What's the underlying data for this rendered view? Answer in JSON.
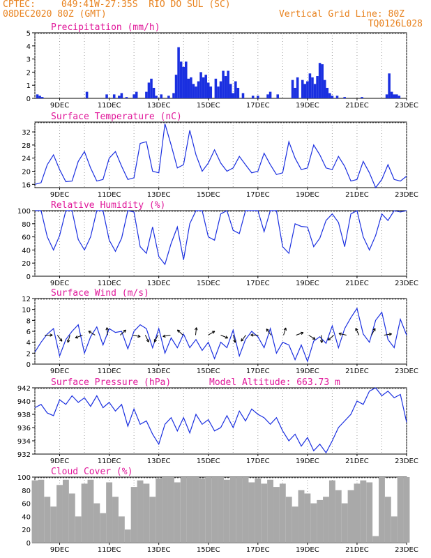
{
  "header": {
    "source": "CPTEC:",
    "location": "049:41W-27:35S  RIO DO SUL (SC)",
    "run": "08DEC2020 80Z (GMT)",
    "grid_note": "Vertical Grid Line: 80Z",
    "model_code": "TQ0126L028"
  },
  "chart_data": [
    {
      "type": "bar",
      "title": "Precipitation (mm/h)",
      "xlabel": "",
      "ylabel": "",
      "x_ticks": [
        "9DEC",
        "11DEC",
        "13DEC",
        "15DEC",
        "17DEC",
        "19DEC",
        "21DEC",
        "23DEC"
      ],
      "x_range": [
        8.0,
        23.0
      ],
      "ylim": [
        0,
        5
      ],
      "y_ticks": [
        0,
        1,
        2,
        3,
        4,
        5
      ],
      "series": [
        {
          "color": "#1a2fe0",
          "x": [
            8.1,
            8.2,
            8.3,
            10.1,
            10.9,
            11.2,
            11.4,
            11.5,
            11.7,
            12.0,
            12.1,
            12.5,
            12.6,
            12.7,
            12.8,
            12.9,
            13.1,
            13.4,
            13.6,
            13.7,
            13.8,
            13.9,
            14.0,
            14.1,
            14.2,
            14.3,
            14.4,
            14.5,
            14.6,
            14.7,
            14.8,
            14.9,
            15.0,
            15.1,
            15.3,
            15.4,
            15.5,
            15.6,
            15.7,
            15.8,
            15.9,
            16.0,
            16.1,
            16.2,
            16.4,
            16.8,
            17.0,
            17.4,
            17.5,
            17.8,
            18.4,
            18.5,
            18.6,
            18.8,
            18.9,
            19.0,
            19.1,
            19.2,
            19.3,
            19.4,
            19.5,
            19.6,
            19.7,
            19.8,
            19.9,
            20.0,
            20.2,
            20.5,
            21.2,
            22.2,
            22.3,
            22.4,
            22.5,
            22.6,
            22.7
          ],
          "y": [
            0.3,
            0.2,
            0.1,
            0.5,
            0.3,
            0.3,
            0.2,
            0.4,
            0.1,
            0.3,
            0.5,
            0.5,
            1.2,
            1.5,
            0.8,
            0.2,
            0.3,
            0.2,
            0.4,
            1.8,
            3.9,
            2.8,
            2.4,
            2.8,
            1.5,
            1.6,
            1.1,
            0.9,
            1.3,
            2.0,
            1.6,
            1.8,
            1.2,
            0.9,
            1.5,
            0.9,
            1.3,
            2.1,
            1.7,
            2.1,
            1.1,
            0.4,
            1.3,
            0.8,
            0.4,
            0.2,
            0.2,
            0.3,
            0.5,
            0.3,
            1.4,
            0.8,
            1.6,
            1.4,
            1.1,
            1.3,
            1.9,
            1.6,
            1.1,
            1.7,
            2.7,
            2.6,
            1.4,
            0.8,
            0.4,
            0.2,
            0.2,
            0.1,
            0.1,
            0.3,
            1.9,
            0.5,
            0.3,
            0.3,
            0.2
          ]
        }
      ]
    },
    {
      "type": "line",
      "title": "Surface Temperature (nC)",
      "xlabel": "",
      "ylabel": "",
      "x_ticks": [
        "9DEC",
        "11DEC",
        "13DEC",
        "15DEC",
        "17DEC",
        "19DEC",
        "21DEC",
        "23DEC"
      ],
      "x_range": [
        8.0,
        23.0
      ],
      "ylim": [
        15,
        35
      ],
      "y_ticks": [
        16,
        20,
        24,
        28,
        32
      ],
      "series": [
        {
          "color": "#1a2fe0",
          "x": [
            8.0,
            8.25,
            8.5,
            8.75,
            9.0,
            9.25,
            9.5,
            9.75,
            10.0,
            10.25,
            10.5,
            10.75,
            11.0,
            11.25,
            11.5,
            11.75,
            12.0,
            12.25,
            12.5,
            12.75,
            13.0,
            13.25,
            13.5,
            13.75,
            14.0,
            14.25,
            14.5,
            14.75,
            15.0,
            15.25,
            15.5,
            15.75,
            16.0,
            16.25,
            16.5,
            16.75,
            17.0,
            17.25,
            17.5,
            17.75,
            18.0,
            18.25,
            18.5,
            18.75,
            19.0,
            19.25,
            19.5,
            19.75,
            20.0,
            20.25,
            20.5,
            20.75,
            21.0,
            21.25,
            21.5,
            21.75,
            22.0,
            22.25,
            22.5,
            22.75,
            23.0
          ],
          "y": [
            16.0,
            16.5,
            22.0,
            25.0,
            20.5,
            16.8,
            17.0,
            23.0,
            26.0,
            21.0,
            17.0,
            17.5,
            24.0,
            26.0,
            21.5,
            17.5,
            18.0,
            28.5,
            29.0,
            20.0,
            19.5,
            34.5,
            28.0,
            21.0,
            22.0,
            32.5,
            25.0,
            20.0,
            22.5,
            26.5,
            22.5,
            20.0,
            21.0,
            24.5,
            22.0,
            19.5,
            20.0,
            25.5,
            22.0,
            19.0,
            19.5,
            29.0,
            24.0,
            20.5,
            21.0,
            28.0,
            25.0,
            21.0,
            20.5,
            24.5,
            21.5,
            17.0,
            17.5,
            23.0,
            19.5,
            14.5,
            17.5,
            22.0,
            17.5,
            17.0,
            18.5
          ]
        }
      ]
    },
    {
      "type": "line",
      "title": "Relative Humidity (%)",
      "xlabel": "",
      "ylabel": "",
      "x_ticks": [
        "9DEC",
        "11DEC",
        "13DEC",
        "15DEC",
        "17DEC",
        "19DEC",
        "21DEC",
        "23DEC"
      ],
      "x_range": [
        8.0,
        23.0
      ],
      "ylim": [
        0,
        100
      ],
      "y_ticks": [
        0,
        20,
        40,
        60,
        80,
        100
      ],
      "series": [
        {
          "color": "#1a2fe0",
          "x": [
            8.0,
            8.25,
            8.5,
            8.75,
            9.0,
            9.25,
            9.5,
            9.75,
            10.0,
            10.25,
            10.5,
            10.75,
            11.0,
            11.25,
            11.5,
            11.75,
            12.0,
            12.25,
            12.5,
            12.75,
            13.0,
            13.25,
            13.5,
            13.75,
            14.0,
            14.25,
            14.5,
            14.75,
            15.0,
            15.25,
            15.5,
            15.75,
            16.0,
            16.25,
            16.5,
            16.75,
            17.0,
            17.25,
            17.5,
            17.75,
            18.0,
            18.25,
            18.5,
            18.75,
            19.0,
            19.25,
            19.5,
            19.75,
            20.0,
            20.25,
            20.5,
            20.75,
            21.0,
            21.25,
            21.5,
            21.75,
            22.0,
            22.25,
            22.5,
            22.75,
            23.0
          ],
          "y": [
            100,
            100,
            60,
            40,
            62,
            100,
            100,
            56,
            40,
            60,
            100,
            100,
            55,
            38,
            58,
            100,
            98,
            45,
            35,
            75,
            30,
            18,
            50,
            75,
            25,
            80,
            100,
            100,
            60,
            55,
            95,
            100,
            70,
            65,
            100,
            100,
            100,
            68,
            100,
            100,
            45,
            35,
            80,
            76,
            75,
            45,
            58,
            85,
            95,
            82,
            45,
            95,
            100,
            60,
            40,
            62,
            95,
            85,
            100,
            98,
            100
          ]
        }
      ]
    },
    {
      "type": "line",
      "title": "Surface Wind (m/s)",
      "xlabel": "",
      "ylabel": "",
      "x_ticks": [
        "9DEC",
        "11DEC",
        "13DEC",
        "15DEC",
        "17DEC",
        "19DEC",
        "21DEC",
        "23DEC"
      ],
      "x_range": [
        8.0,
        23.0
      ],
      "ylim": [
        0,
        12
      ],
      "y_ticks": [
        0,
        2,
        4,
        6,
        8,
        10,
        12
      ],
      "series": [
        {
          "color": "#1a2fe0",
          "x": [
            8.0,
            8.25,
            8.5,
            8.75,
            9.0,
            9.25,
            9.5,
            9.75,
            10.0,
            10.25,
            10.5,
            10.75,
            11.0,
            11.25,
            11.5,
            11.75,
            12.0,
            12.25,
            12.5,
            12.75,
            13.0,
            13.25,
            13.5,
            13.75,
            14.0,
            14.25,
            14.5,
            14.75,
            15.0,
            15.25,
            15.5,
            15.75,
            16.0,
            16.25,
            16.5,
            16.75,
            17.0,
            17.25,
            17.5,
            17.75,
            18.0,
            18.25,
            18.5,
            18.75,
            19.0,
            19.25,
            19.5,
            19.75,
            20.0,
            20.25,
            20.5,
            20.75,
            21.0,
            21.25,
            21.5,
            21.75,
            22.0,
            22.25,
            22.5,
            22.75,
            23.0
          ],
          "y": [
            2.2,
            4.0,
            5.5,
            6.5,
            1.5,
            4.5,
            6.0,
            7.2,
            2.0,
            5.0,
            6.8,
            3.5,
            6.5,
            5.8,
            6.0,
            2.8,
            6.0,
            7.2,
            6.5,
            3.0,
            6.5,
            2.0,
            4.8,
            3.0,
            5.5,
            3.0,
            4.5,
            2.5,
            4.0,
            1.0,
            4.0,
            3.0,
            6.2,
            1.5,
            4.5,
            6.0,
            5.0,
            3.0,
            6.5,
            2.0,
            4.0,
            3.5,
            0.8,
            3.5,
            0.5,
            4.2,
            5.0,
            3.8,
            7.0,
            3.0,
            6.5,
            8.5,
            10.2,
            5.5,
            4.0,
            8.0,
            9.5,
            4.5,
            3.0,
            8.2,
            5.3
          ]
        }
      ],
      "arrows_count": 28
    },
    {
      "type": "line",
      "title": "Surface Pressure (hPa)",
      "annotation": "Model Altitude: 663.73 m",
      "xlabel": "",
      "ylabel": "",
      "x_ticks": [
        "9DEC",
        "11DEC",
        "13DEC",
        "15DEC",
        "17DEC",
        "19DEC",
        "21DEC",
        "23DEC"
      ],
      "x_range": [
        8.0,
        23.0
      ],
      "ylim": [
        932,
        942
      ],
      "y_ticks": [
        932,
        934,
        936,
        938,
        940,
        942
      ],
      "series": [
        {
          "color": "#1a2fe0",
          "x": [
            8.0,
            8.25,
            8.5,
            8.75,
            9.0,
            9.25,
            9.5,
            9.75,
            10.0,
            10.25,
            10.5,
            10.75,
            11.0,
            11.25,
            11.5,
            11.75,
            12.0,
            12.25,
            12.5,
            12.75,
            13.0,
            13.25,
            13.5,
            13.75,
            14.0,
            14.25,
            14.5,
            14.75,
            15.0,
            15.25,
            15.5,
            15.75,
            16.0,
            16.25,
            16.5,
            16.75,
            17.0,
            17.25,
            17.5,
            17.75,
            18.0,
            18.25,
            18.5,
            18.75,
            19.0,
            19.25,
            19.5,
            19.75,
            20.0,
            20.25,
            20.5,
            20.75,
            21.0,
            21.25,
            21.5,
            21.75,
            22.0,
            22.25,
            22.5,
            22.75,
            23.0
          ],
          "y": [
            939.0,
            939.5,
            938.2,
            937.8,
            940.2,
            939.5,
            940.8,
            939.8,
            940.5,
            939.2,
            940.8,
            939.0,
            939.8,
            938.5,
            939.5,
            936.2,
            938.8,
            936.5,
            937.0,
            935.0,
            933.5,
            936.5,
            937.5,
            935.5,
            937.5,
            935.2,
            938.0,
            936.5,
            937.2,
            935.5,
            936.0,
            937.8,
            936.0,
            938.5,
            937.0,
            938.8,
            938.0,
            937.5,
            936.5,
            937.5,
            935.5,
            934.0,
            935.0,
            933.2,
            934.5,
            932.5,
            933.5,
            932.2,
            934.0,
            936.0,
            937.0,
            938.0,
            940.0,
            939.5,
            941.5,
            942.5,
            940.8,
            941.5,
            940.5,
            941.0,
            936.8
          ]
        }
      ]
    },
    {
      "type": "area",
      "title": "Cloud Cover (%)",
      "xlabel": "",
      "ylabel": "",
      "x_ticks": [
        "9DEC",
        "11DEC",
        "13DEC",
        "15DEC",
        "17DEC",
        "19DEC",
        "21DEC",
        "23DEC"
      ],
      "x_range": [
        8.0,
        23.0
      ],
      "ylim": [
        0,
        100
      ],
      "y_ticks": [
        0,
        20,
        40,
        60,
        80,
        100
      ],
      "series": [
        {
          "color": "#a9a9a9",
          "x": [
            8.0,
            8.25,
            8.5,
            8.75,
            9.0,
            9.25,
            9.5,
            9.75,
            10.0,
            10.25,
            10.5,
            10.75,
            11.0,
            11.25,
            11.5,
            11.75,
            12.0,
            12.25,
            12.5,
            12.75,
            13.0,
            13.25,
            13.5,
            13.75,
            14.0,
            14.25,
            14.5,
            14.75,
            15.0,
            15.25,
            15.5,
            15.75,
            16.0,
            16.25,
            16.5,
            16.75,
            17.0,
            17.25,
            17.5,
            17.75,
            18.0,
            18.25,
            18.5,
            18.75,
            19.0,
            19.25,
            19.5,
            19.75,
            20.0,
            20.25,
            20.5,
            20.75,
            21.0,
            21.25,
            21.5,
            21.75,
            22.0,
            22.25,
            22.5,
            22.75,
            23.0
          ],
          "y": [
            95,
            96,
            70,
            55,
            88,
            96,
            75,
            40,
            90,
            96,
            60,
            45,
            92,
            70,
            40,
            20,
            85,
            95,
            90,
            70,
            98,
            100,
            100,
            92,
            100,
            100,
            100,
            98,
            100,
            100,
            100,
            96,
            100,
            100,
            100,
            92,
            98,
            90,
            96,
            85,
            90,
            70,
            55,
            80,
            75,
            60,
            65,
            70,
            95,
            80,
            60,
            80,
            90,
            95,
            92,
            10,
            100,
            70,
            40,
            100,
            100
          ]
        }
      ]
    }
  ]
}
